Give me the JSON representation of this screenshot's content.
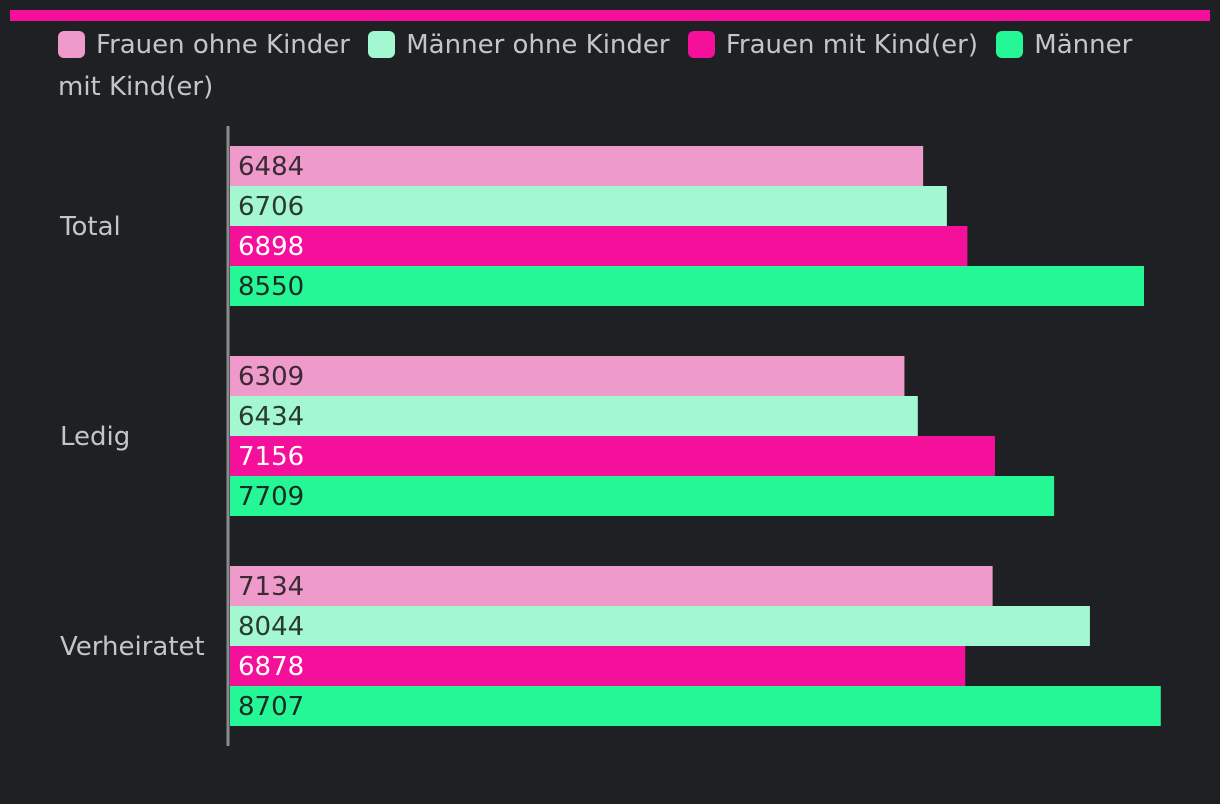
{
  "colors": {
    "background": "#1f2023",
    "accent_bar": "#f5109b",
    "axis": "#8a8b8e",
    "text": "#c4c5c8"
  },
  "chart_data": {
    "type": "bar",
    "orientation": "horizontal",
    "title": "",
    "xlabel": "",
    "ylabel": "",
    "categories": [
      "Total",
      "Ledig",
      "Verheiratet"
    ],
    "series": [
      {
        "name": "Frauen ohne Kinder",
        "color": "#ee9acb",
        "label_color": "#3a2a33",
        "values": [
          6484,
          6309,
          7134
        ]
      },
      {
        "name": "Männer ohne Kinder",
        "color": "#a3f8d1",
        "label_color": "#2a3a33",
        "values": [
          6706,
          6434,
          8044
        ]
      },
      {
        "name": "Frauen mit Kind(er)",
        "color": "#f5109b",
        "label_color": "#ffffff",
        "values": [
          6898,
          7156,
          6878
        ]
      },
      {
        "name": "Männer mit Kind(er)",
        "color": "#26f796",
        "label_color": "#1c2a24",
        "values": [
          8550,
          7709,
          8707
        ]
      }
    ],
    "xlim": [
      0,
      9000
    ],
    "legend_position": "top",
    "grid": false,
    "data_labels": true
  }
}
